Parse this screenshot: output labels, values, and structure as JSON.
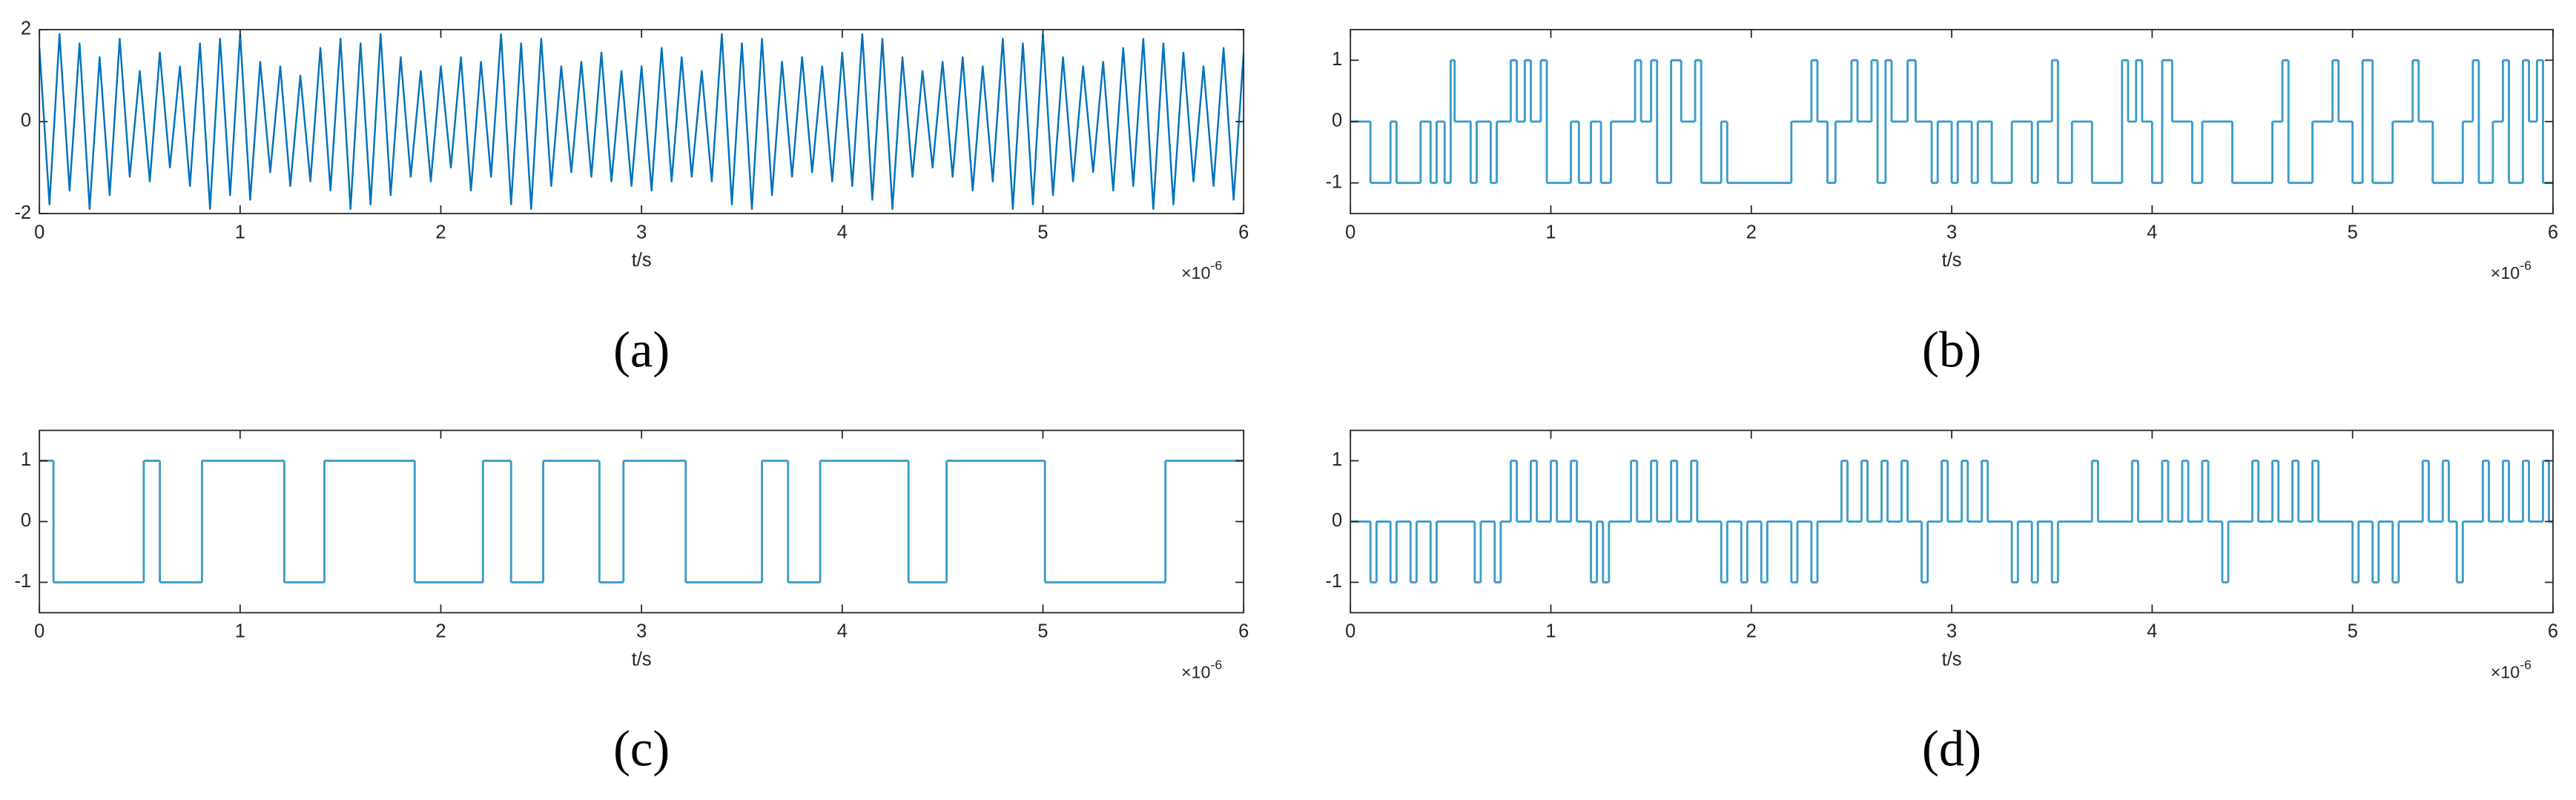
{
  "chart_data": [
    {
      "type": "line",
      "caption": "(a)",
      "xlabel": "t/s",
      "x_multiplier": {
        "base": "×10",
        "exponent": "-6"
      },
      "color": "#0072bd",
      "xlim": [
        0,
        6
      ],
      "xticks": [
        0,
        1,
        2,
        3,
        4,
        5,
        6
      ],
      "ylim": [
        -2,
        2
      ],
      "yticks": [
        -2,
        0,
        2
      ],
      "x": [
        0,
        0.05,
        0.1,
        0.15,
        0.2,
        0.25,
        0.3,
        0.35,
        0.4,
        0.45,
        0.5,
        0.55,
        0.6,
        0.65,
        0.7,
        0.75,
        0.8,
        0.85,
        0.9,
        0.95,
        1,
        1.05,
        1.1,
        1.15,
        1.2,
        1.25,
        1.3,
        1.35,
        1.4,
        1.45,
        1.5,
        1.55,
        1.6,
        1.65,
        1.7,
        1.75,
        1.8,
        1.85,
        1.9,
        1.95,
        2,
        2.05,
        2.1,
        2.15,
        2.2,
        2.25,
        2.3,
        2.35,
        2.4,
        2.45,
        2.5,
        2.55,
        2.6,
        2.65,
        2.7,
        2.75,
        2.8,
        2.85,
        2.9,
        2.95,
        3,
        3.05,
        3.1,
        3.15,
        3.2,
        3.25,
        3.3,
        3.35,
        3.4,
        3.45,
        3.5,
        3.55,
        3.6,
        3.65,
        3.7,
        3.75,
        3.8,
        3.85,
        3.9,
        3.95,
        4,
        4.05,
        4.1,
        4.15,
        4.2,
        4.25,
        4.3,
        4.35,
        4.4,
        4.45,
        4.5,
        4.55,
        4.6,
        4.65,
        4.7,
        4.75,
        4.8,
        4.85,
        4.9,
        4.95,
        5,
        5.05,
        5.1,
        5.15,
        5.2,
        5.25,
        5.3,
        5.35,
        5.4,
        5.45,
        5.5,
        5.55,
        5.6,
        5.65,
        5.7,
        5.75,
        5.8,
        5.85,
        5.9,
        5.95,
        6
      ],
      "values": [
        1.6,
        -1.8,
        1.9,
        -1.5,
        1.7,
        -1.9,
        1.4,
        -1.6,
        1.8,
        -1.2,
        1.1,
        -1.3,
        1.5,
        -1.0,
        1.2,
        -1.4,
        1.7,
        -1.9,
        1.8,
        -1.6,
        1.9,
        -1.7,
        1.3,
        -1.1,
        1.2,
        -1.4,
        1.0,
        -1.3,
        1.6,
        -1.5,
        1.8,
        -1.9,
        1.7,
        -1.8,
        1.9,
        -1.6,
        1.4,
        -1.2,
        1.1,
        -1.3,
        1.2,
        -1.0,
        1.4,
        -1.5,
        1.3,
        -1.2,
        1.9,
        -1.8,
        1.7,
        -1.9,
        1.8,
        -1.4,
        1.2,
        -1.1,
        1.3,
        -1.2,
        1.5,
        -1.3,
        1.1,
        -1.4,
        1.2,
        -1.5,
        1.6,
        -1.3,
        1.4,
        -1.2,
        1.1,
        -1.3,
        1.9,
        -1.8,
        1.7,
        -1.9,
        1.8,
        -1.6,
        1.3,
        -1.2,
        1.4,
        -1.1,
        1.2,
        -1.3,
        1.5,
        -1.4,
        1.9,
        -1.7,
        1.8,
        -1.9,
        1.4,
        -1.2,
        1.1,
        -1.0,
        1.3,
        -1.2,
        1.4,
        -1.5,
        1.2,
        -1.3,
        1.8,
        -1.9,
        1.7,
        -1.8,
        1.9,
        -1.6,
        1.4,
        -1.3,
        1.2,
        -1.1,
        1.3,
        -1.5,
        1.6,
        -1.4,
        1.8,
        -1.9,
        1.7,
        -1.8,
        1.5,
        -1.3,
        1.2,
        -1.4,
        1.6,
        -1.7,
        1.5
      ]
    },
    {
      "type": "step",
      "caption": "(b)",
      "xlabel": "t/s",
      "x_multiplier": {
        "base": "×10",
        "exponent": "-6"
      },
      "color": "#3c9cc8",
      "xlim": [
        0,
        6
      ],
      "xticks": [
        0,
        1,
        2,
        3,
        4,
        5,
        6
      ],
      "ylim": [
        -1.5,
        1.5
      ],
      "yticks": [
        -1,
        0,
        1
      ],
      "x": [
        0,
        0.1,
        0.2,
        0.23,
        0.35,
        0.4,
        0.43,
        0.47,
        0.5,
        0.52,
        0.6,
        0.63,
        0.7,
        0.73,
        0.8,
        0.83,
        0.87,
        0.9,
        0.95,
        0.98,
        1.1,
        1.14,
        1.2,
        1.25,
        1.3,
        1.42,
        1.45,
        1.5,
        1.53,
        1.6,
        1.65,
        1.72,
        1.75,
        1.85,
        1.88,
        2.2,
        2.3,
        2.33,
        2.38,
        2.42,
        2.5,
        2.53,
        2.6,
        2.63,
        2.67,
        2.7,
        2.78,
        2.82,
        2.9,
        2.93,
        3,
        3.03,
        3.1,
        3.13,
        3.2,
        3.3,
        3.4,
        3.43,
        3.5,
        3.53,
        3.6,
        3.7,
        3.85,
        3.88,
        3.92,
        3.95,
        4,
        4.05,
        4.1,
        4.2,
        4.25,
        4.4,
        4.6,
        4.65,
        4.68,
        4.8,
        4.9,
        4.93,
        5,
        5.05,
        5.1,
        5.2,
        5.3,
        5.33,
        5.4,
        5.55,
        5.6,
        5.63,
        5.7,
        5.75,
        5.78,
        5.85,
        5.88,
        5.92,
        5.95
      ],
      "values": [
        0,
        -1,
        0,
        -1,
        0,
        -1,
        0,
        -1,
        1,
        0,
        -1,
        0,
        -1,
        0,
        1,
        0,
        1,
        0,
        1,
        -1,
        0,
        -1,
        0,
        -1,
        0,
        1,
        0,
        1,
        -1,
        1,
        0,
        1,
        -1,
        0,
        -1,
        0,
        1,
        0,
        -1,
        0,
        1,
        0,
        1,
        -1,
        1,
        0,
        1,
        0,
        -1,
        0,
        -1,
        0,
        -1,
        0,
        -1,
        0,
        -1,
        0,
        1,
        -1,
        0,
        -1,
        1,
        0,
        1,
        0,
        -1,
        1,
        0,
        -1,
        0,
        -1,
        0,
        1,
        -1,
        0,
        1,
        0,
        -1,
        1,
        -1,
        0,
        1,
        0,
        -1,
        0,
        1,
        -1,
        0,
        1,
        -1,
        1,
        0,
        1,
        -1
      ]
    },
    {
      "type": "step",
      "caption": "(c)",
      "xlabel": "t/s",
      "x_multiplier": {
        "base": "×10",
        "exponent": "-6"
      },
      "color": "#3c9cc8",
      "xlim": [
        0,
        6
      ],
      "xticks": [
        0,
        1,
        2,
        3,
        4,
        5,
        6
      ],
      "ylim": [
        -1.5,
        1.5
      ],
      "yticks": [
        -1,
        0,
        1
      ],
      "x": [
        0,
        0.07,
        0.52,
        0.6,
        0.81,
        1.22,
        1.42,
        1.87,
        2.21,
        2.35,
        2.51,
        2.79,
        2.91,
        3.22,
        3.6,
        3.73,
        3.89,
        4.33,
        4.52,
        5.01,
        5.61
      ],
      "values": [
        1,
        -1,
        1,
        -1,
        1,
        -1,
        1,
        -1,
        1,
        -1,
        1,
        -1,
        1,
        -1,
        1,
        -1,
        1,
        -1,
        1,
        -1,
        1
      ]
    },
    {
      "type": "step",
      "caption": "(d)",
      "xlabel": "t/s",
      "x_multiplier": {
        "base": "×10",
        "exponent": "-6"
      },
      "color": "#3c9cc8",
      "xlim": [
        0,
        6
      ],
      "xticks": [
        0,
        1,
        2,
        3,
        4,
        5,
        6
      ],
      "ylim": [
        -1.5,
        1.5
      ],
      "yticks": [
        -1,
        0,
        1
      ],
      "x": [
        0,
        0.1,
        0.13,
        0.2,
        0.23,
        0.3,
        0.33,
        0.4,
        0.43,
        0.62,
        0.65,
        0.72,
        0.75,
        0.8,
        0.83,
        0.9,
        0.93,
        1,
        1.03,
        1.1,
        1.13,
        1.2,
        1.23,
        1.26,
        1.29,
        1.4,
        1.43,
        1.5,
        1.53,
        1.6,
        1.63,
        1.7,
        1.73,
        1.85,
        1.88,
        1.95,
        1.98,
        2.05,
        2.08,
        2.2,
        2.23,
        2.3,
        2.33,
        2.45,
        2.48,
        2.55,
        2.58,
        2.65,
        2.68,
        2.75,
        2.78,
        2.85,
        2.88,
        2.95,
        2.98,
        3.05,
        3.08,
        3.15,
        3.18,
        3.3,
        3.33,
        3.4,
        3.43,
        3.5,
        3.53,
        3.7,
        3.73,
        3.9,
        3.93,
        4.05,
        4.08,
        4.15,
        4.18,
        4.25,
        4.28,
        4.35,
        4.38,
        4.5,
        4.53,
        4.6,
        4.63,
        4.7,
        4.73,
        4.8,
        4.83,
        5,
        5.03,
        5.1,
        5.13,
        5.2,
        5.23,
        5.35,
        5.38,
        5.45,
        5.48,
        5.52,
        5.55,
        5.65,
        5.68,
        5.75,
        5.78,
        5.85,
        5.88,
        5.95,
        5.98
      ],
      "values": [
        0,
        -1,
        0,
        -1,
        0,
        -1,
        0,
        -1,
        0,
        -1,
        0,
        -1,
        0,
        1,
        0,
        1,
        0,
        1,
        0,
        1,
        0,
        -1,
        0,
        -1,
        0,
        1,
        0,
        1,
        0,
        1,
        0,
        1,
        0,
        -1,
        0,
        -1,
        0,
        -1,
        0,
        -1,
        0,
        -1,
        0,
        1,
        0,
        1,
        0,
        1,
        0,
        1,
        0,
        -1,
        0,
        1,
        0,
        1,
        0,
        1,
        0,
        -1,
        0,
        -1,
        0,
        -1,
        0,
        1,
        0,
        1,
        0,
        1,
        0,
        1,
        0,
        1,
        0,
        -1,
        0,
        1,
        0,
        1,
        0,
        1,
        0,
        1,
        0,
        -1,
        0,
        -1,
        0,
        -1,
        0,
        1,
        0,
        1,
        0,
        -1,
        0,
        1,
        0,
        1,
        0,
        1,
        0,
        1,
        0
      ]
    }
  ]
}
